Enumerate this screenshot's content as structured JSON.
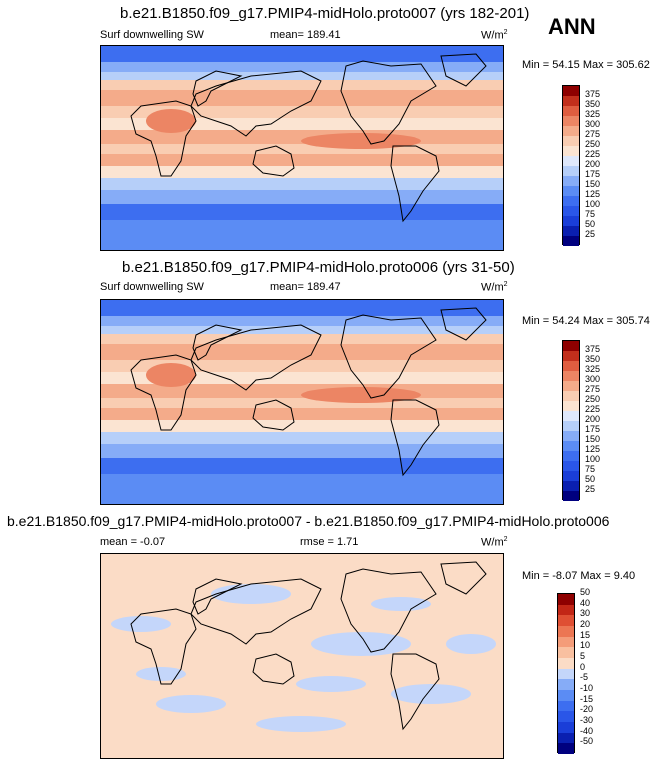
{
  "panels": [
    {
      "title": "b.e21.B1850.f09_g17.PMIP4-midHolo.proto007 (yrs 182-201)",
      "left_label": "Surf downwelling SW",
      "center_label": "mean=  189.41",
      "units_base": "W/m",
      "units_exp": "2",
      "minmax": "Min =  54.15 Max = 305.62"
    },
    {
      "title": "b.e21.B1850.f09_g17.PMIP4-midHolo.proto006 (yrs 31-50)",
      "left_label": "Surf downwelling SW",
      "center_label": "mean=  189.47",
      "units_base": "W/m",
      "units_exp": "2",
      "minmax": "Min =  54.24 Max = 305.74"
    },
    {
      "title": "b.e21.B1850.f09_g17.PMIP4-midHolo.proto007 - b.e21.B1850.f09_g17.PMIP4-midHolo.proto006",
      "left_label": "mean =  -0.07",
      "center_label": "rmse =   1.71",
      "units_base": "W/m",
      "units_exp": "2",
      "minmax": "Min = -8.07 Max =  9.40"
    }
  ],
  "season": "ANN",
  "chart_data": [
    {
      "type": "heatmap",
      "title": "b.e21.B1850.f09_g17.PMIP4-midHolo.proto007 (yrs 182-201)",
      "variable": "Surf downwelling SW",
      "units": "W/m2",
      "mean": 189.41,
      "min": 54.15,
      "max": 305.62,
      "colorbar_levels": [
        25,
        50,
        75,
        100,
        125,
        150,
        175,
        200,
        225,
        250,
        275,
        300,
        325,
        350,
        375
      ]
    },
    {
      "type": "heatmap",
      "title": "b.e21.B1850.f09_g17.PMIP4-midHolo.proto006 (yrs 31-50)",
      "variable": "Surf downwelling SW",
      "units": "W/m2",
      "mean": 189.47,
      "min": 54.24,
      "max": 305.74,
      "colorbar_levels": [
        25,
        50,
        75,
        100,
        125,
        150,
        175,
        200,
        225,
        250,
        275,
        300,
        325,
        350,
        375
      ]
    },
    {
      "type": "heatmap",
      "title": "b.e21.B1850.f09_g17.PMIP4-midHolo.proto007 - b.e21.B1850.f09_g17.PMIP4-midHolo.proto006",
      "units": "W/m2",
      "mean": -0.07,
      "rmse": 1.71,
      "min": -8.07,
      "max": 9.4,
      "colorbar_levels": [
        -50,
        -40,
        -30,
        -20,
        -15,
        -10,
        -5,
        0,
        5,
        10,
        15,
        20,
        30,
        40,
        50
      ]
    }
  ],
  "colors": {
    "abs_scale": [
      "#00007f",
      "#0a1fb0",
      "#1a3ed8",
      "#2a56e8",
      "#3d6ef0",
      "#5b8cf4",
      "#86acf7",
      "#b6cff9",
      "#dfe8fb",
      "#fbe4d2",
      "#f9cdb2",
      "#f4ab8a",
      "#ec8564",
      "#df5d40",
      "#c22f1c",
      "#8e0000"
    ],
    "diff_scale": [
      "#00007f",
      "#0a1fb0",
      "#1a3ed8",
      "#2a56e8",
      "#3d6ef0",
      "#5b8cf4",
      "#86acf7",
      "#c4d6fa",
      "#fbdcc6",
      "#f9c0a0",
      "#f49c79",
      "#ec7653",
      "#df4f33",
      "#c22616",
      "#8e0000"
    ]
  }
}
